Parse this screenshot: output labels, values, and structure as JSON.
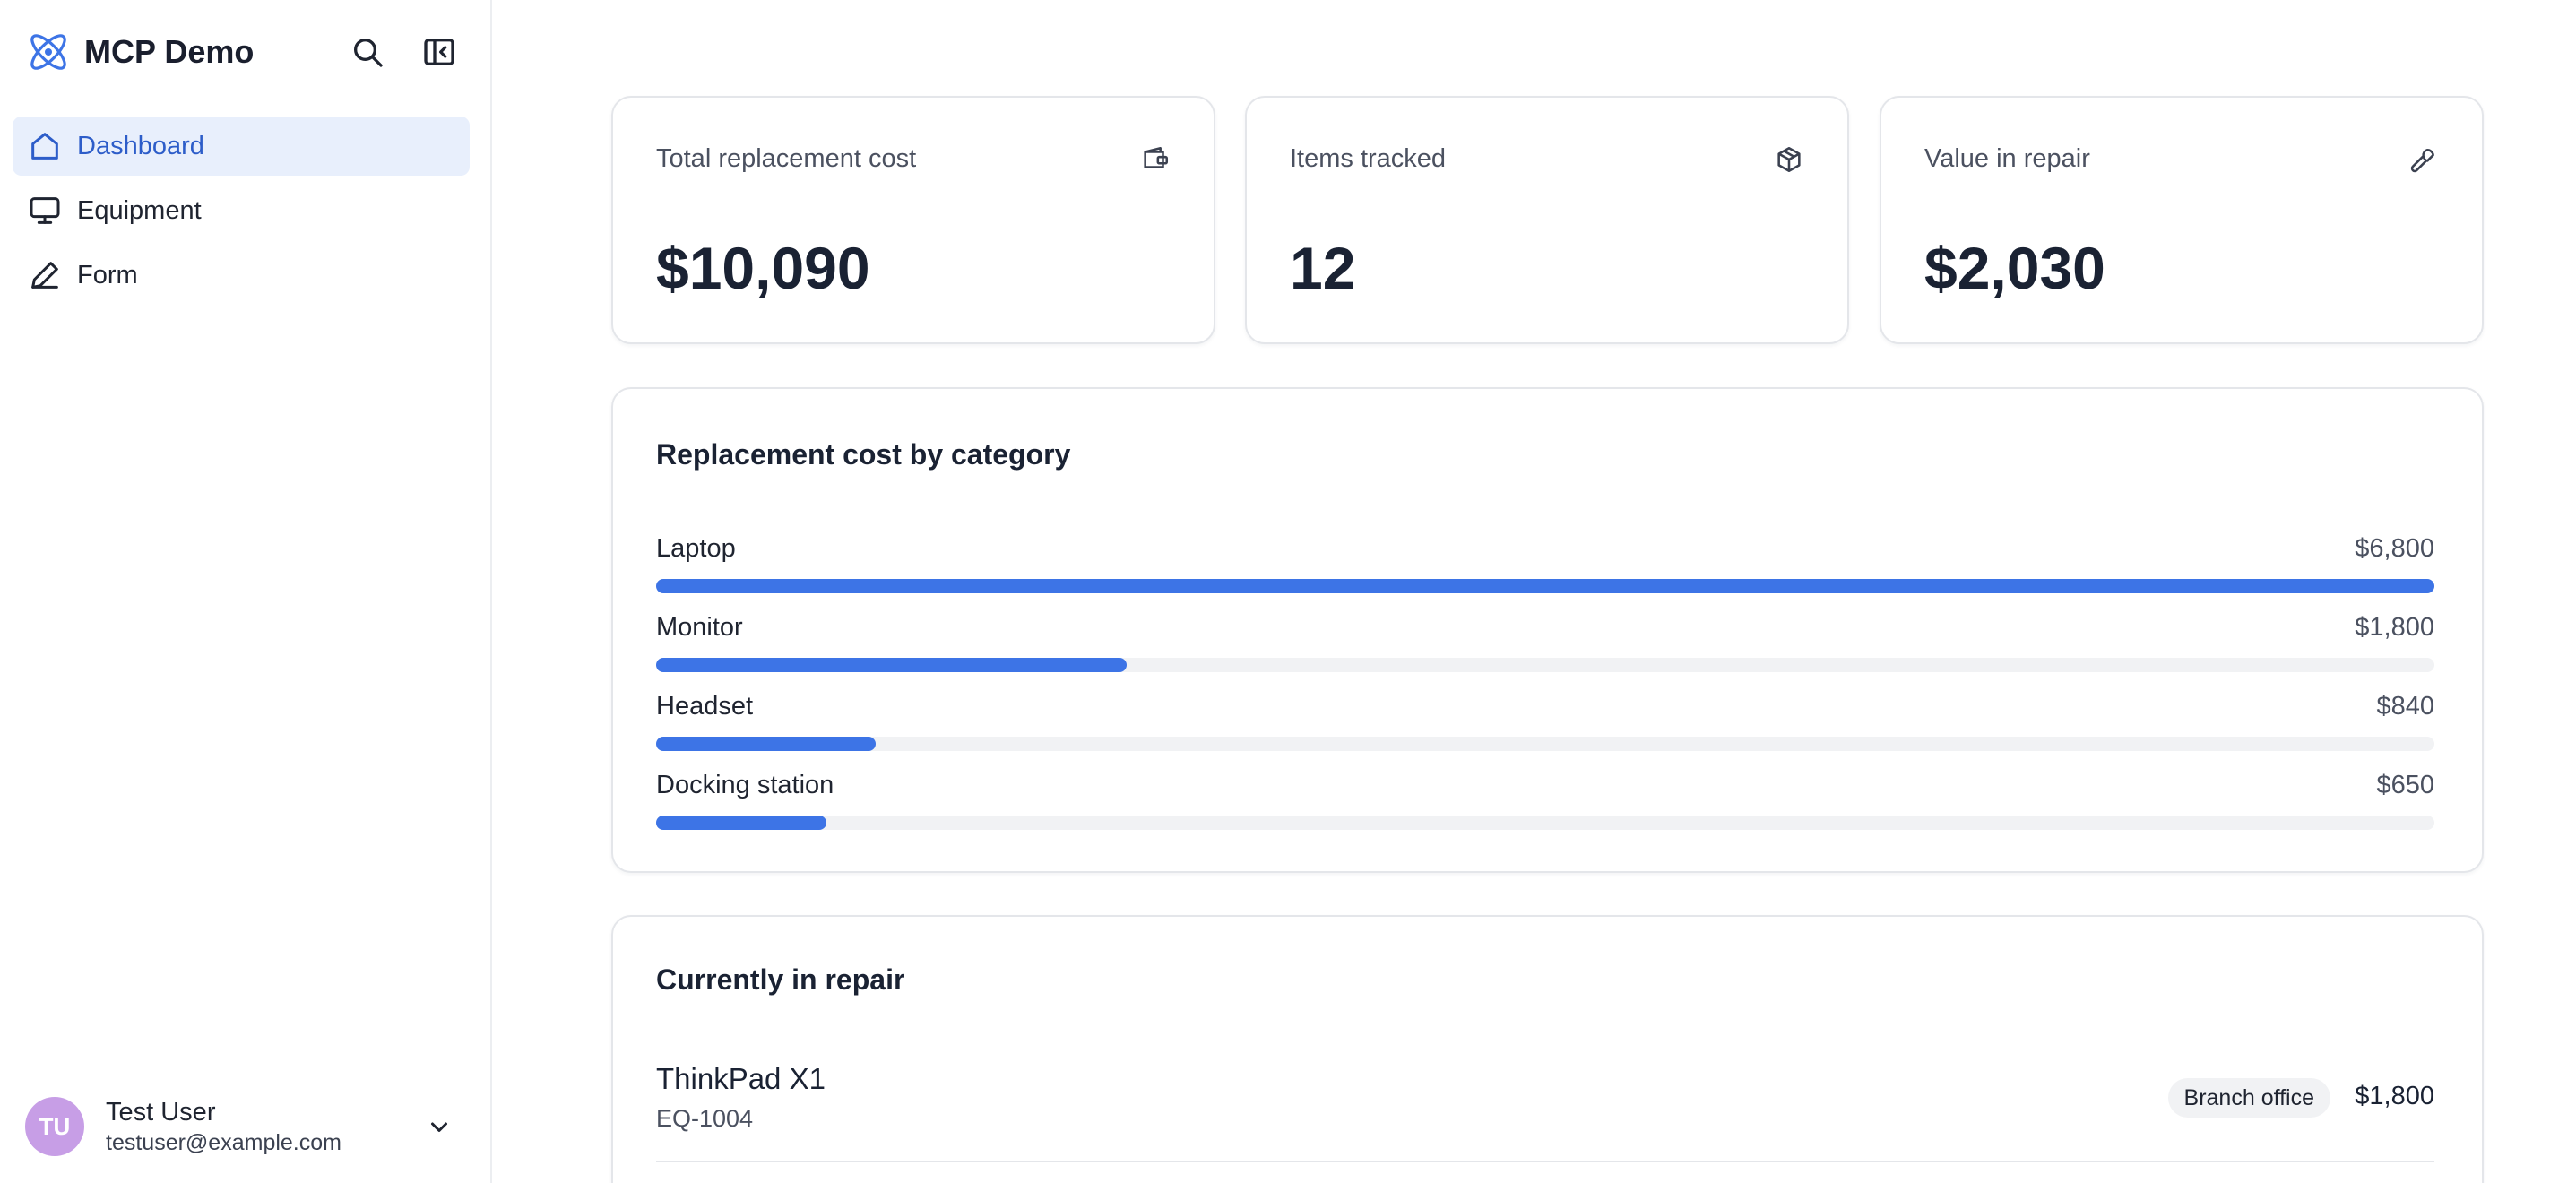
{
  "app": {
    "title": "MCP Demo"
  },
  "sidebar": {
    "items": [
      {
        "label": "Dashboard",
        "icon": "home-icon",
        "active": true
      },
      {
        "label": "Equipment",
        "icon": "monitor-icon",
        "active": false
      },
      {
        "label": "Form",
        "icon": "pencil-icon",
        "active": false
      }
    ],
    "user": {
      "initials": "TU",
      "name": "Test User",
      "email": "testuser@example.com"
    }
  },
  "stats": [
    {
      "label": "Total replacement cost",
      "value": "$10,090",
      "icon": "wallet-icon"
    },
    {
      "label": "Items tracked",
      "value": "12",
      "icon": "package-icon"
    },
    {
      "label": "Value in repair",
      "value": "$2,030",
      "icon": "wrench-icon"
    }
  ],
  "by_category": {
    "title": "Replacement cost by category",
    "rows": [
      {
        "label": "Laptop",
        "value": "$6,800",
        "amount": 6800
      },
      {
        "label": "Monitor",
        "value": "$1,800",
        "amount": 1800
      },
      {
        "label": "Headset",
        "value": "$840",
        "amount": 840
      },
      {
        "label": "Docking station",
        "value": "$650",
        "amount": 650
      }
    ]
  },
  "repair": {
    "title": "Currently in repair",
    "items": [
      {
        "name": "ThinkPad X1",
        "id": "EQ-1004",
        "location": "Branch office",
        "price": "$1,800"
      }
    ]
  },
  "colors": {
    "accent": "#3d74e6",
    "active_bg": "#e8effc",
    "active_text": "#2d5dc9",
    "avatar": "#c79ee6"
  }
}
